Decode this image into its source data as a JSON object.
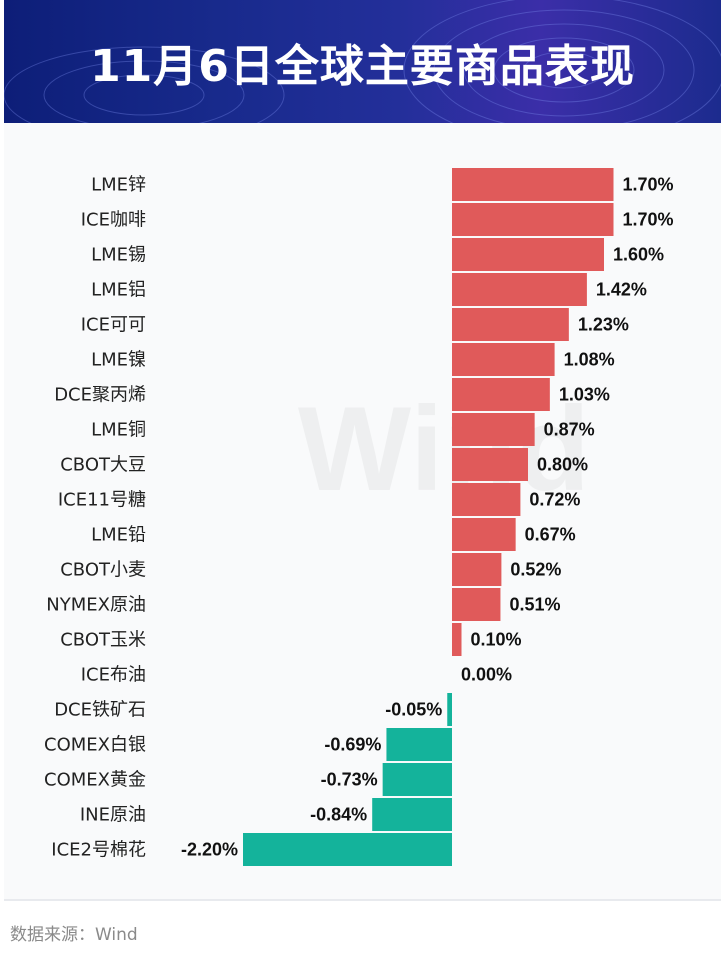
{
  "title": "11月6日全球主要商品表现",
  "source": "数据来源：Wind",
  "watermark": "Wind",
  "colors": {
    "positive": "#e05a5a",
    "negative": "#14b39b",
    "header": "#1a2a8e"
  },
  "chart_data": {
    "type": "bar",
    "orientation": "horizontal",
    "value_format": "percent",
    "categories": [
      "LME锌",
      "ICE咖啡",
      "LME锡",
      "LME铝",
      "ICE可可",
      "LME镍",
      "DCE聚丙烯",
      "LME铜",
      "CBOT大豆",
      "ICE11号糖",
      "LME铅",
      "CBOT小麦",
      "NYMEX原油",
      "CBOT玉米",
      "ICE布油",
      "DCE铁矿石",
      "COMEX白银",
      "COMEX黄金",
      "INE原油",
      "ICE2号棉花"
    ],
    "values": [
      1.7,
      1.7,
      1.6,
      1.42,
      1.23,
      1.08,
      1.03,
      0.87,
      0.8,
      0.72,
      0.67,
      0.52,
      0.51,
      0.1,
      0.0,
      -0.05,
      -0.69,
      -0.73,
      -0.84,
      -2.2
    ],
    "labels": [
      "1.70%",
      "1.70%",
      "1.60%",
      "1.42%",
      "1.23%",
      "1.08%",
      "1.03%",
      "0.87%",
      "0.80%",
      "0.72%",
      "0.67%",
      "0.52%",
      "0.51%",
      "0.10%",
      "0.00%",
      "-0.05%",
      "-0.69%",
      "-0.73%",
      "-0.84%",
      "-2.20%"
    ],
    "title": "11月6日全球主要商品表现",
    "xlabel": "",
    "ylabel": "",
    "xlim": [
      -2.2,
      1.7
    ],
    "grid": false,
    "legend": "none"
  }
}
